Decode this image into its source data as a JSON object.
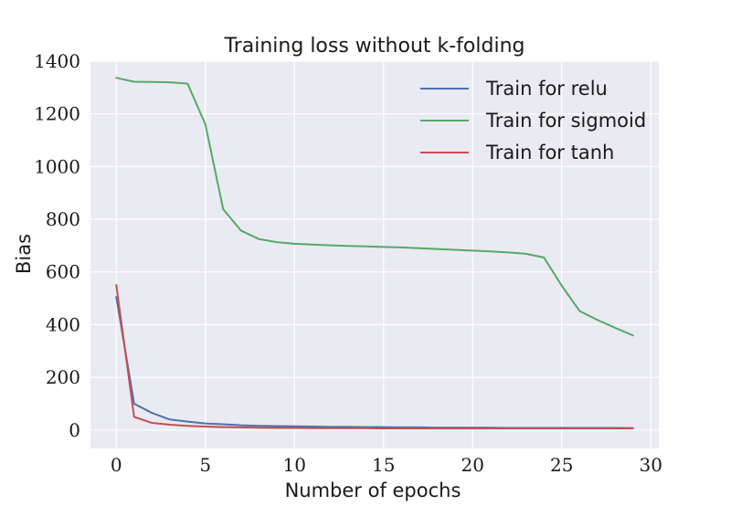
{
  "chart_data": {
    "type": "line",
    "title": "Training loss without k-folding",
    "xlabel": "Number of epochs",
    "ylabel": "Bias",
    "xlim": [
      -1.45,
      30.45
    ],
    "ylim": [
      -70,
      1400
    ],
    "xticks": [
      0,
      5,
      10,
      15,
      20,
      25,
      30
    ],
    "yticks": [
      0,
      200,
      400,
      600,
      800,
      1000,
      1200,
      1400
    ],
    "grid": true,
    "legend_position": "top-right",
    "style": {
      "background": "#eaeaf2",
      "grid_color": "#ffffff"
    },
    "x": [
      0,
      1,
      2,
      3,
      4,
      5,
      6,
      7,
      8,
      9,
      10,
      11,
      12,
      13,
      14,
      15,
      16,
      17,
      18,
      19,
      20,
      21,
      22,
      23,
      24,
      25,
      26,
      27,
      28,
      29
    ],
    "series": [
      {
        "name": "Train for relu",
        "color": "#4c72b0",
        "values": [
          505,
          100,
          65,
          40,
          32,
          25,
          22,
          18,
          16,
          15,
          14,
          13,
          12,
          12,
          11,
          11,
          10,
          10,
          9,
          9,
          9,
          9,
          8,
          8,
          8,
          8,
          8,
          8,
          8,
          7
        ]
      },
      {
        "name": "Train for sigmoid",
        "color": "#55a868",
        "values": [
          1337,
          1322,
          1321,
          1320,
          1315,
          1160,
          838,
          757,
          725,
          713,
          707,
          704,
          701,
          699,
          697,
          695,
          693,
          690,
          687,
          684,
          681,
          678,
          674,
          669,
          655,
          548,
          452,
          418,
          388,
          359
        ]
      },
      {
        "name": "Train for tanh",
        "color": "#c44e52",
        "values": [
          550,
          50,
          27,
          20,
          16,
          13,
          11,
          10,
          9,
          8,
          8,
          7,
          7,
          7,
          7,
          6,
          6,
          6,
          6,
          6,
          6,
          6,
          6,
          6,
          6,
          6,
          6,
          6,
          6,
          6
        ]
      }
    ]
  }
}
